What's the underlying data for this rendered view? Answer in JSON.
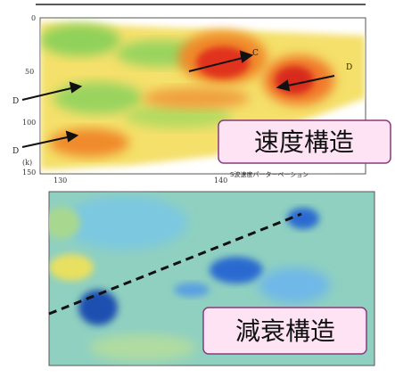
{
  "panels": [
    {
      "label": "速度構造",
      "y_ticks": [
        "0",
        "50",
        "100",
        "(k)",
        "150"
      ],
      "x_ticks": [
        "130",
        "140"
      ],
      "annotations": [
        "C",
        "D",
        "D",
        "D"
      ],
      "caption": "S波速度パーターベーション"
    },
    {
      "label": "減衰構造"
    }
  ]
}
